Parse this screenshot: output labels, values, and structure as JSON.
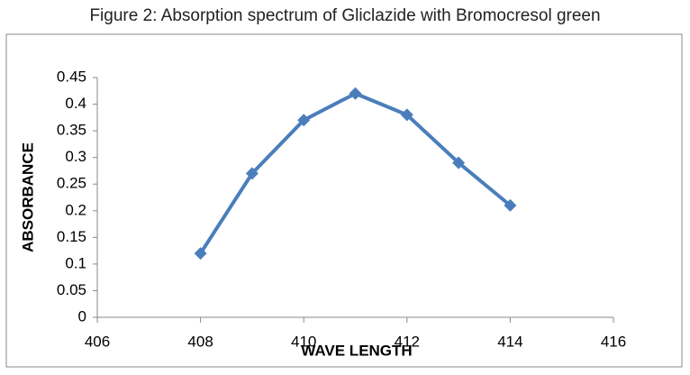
{
  "chart_data": {
    "type": "line",
    "title": "Figure 2: Absorption spectrum of Gliclazide with Bromocresol green",
    "x_label": "WAVE LENGTH",
    "y_label": "ABSORBANCE",
    "x": [
      408,
      409,
      410,
      411,
      412,
      413,
      414
    ],
    "values": [
      0.12,
      0.27,
      0.37,
      0.42,
      0.38,
      0.29,
      0.21
    ],
    "color": "#4a7ebb",
    "xlim": [
      406,
      416
    ],
    "xticks": [
      406,
      408,
      410,
      412,
      414,
      416
    ],
    "ylim": [
      0,
      0.45
    ],
    "yticks": [
      0,
      0.05,
      0.1,
      0.15,
      0.2,
      0.25,
      0.3,
      0.35,
      0.4,
      0.45
    ],
    "grid": false
  }
}
